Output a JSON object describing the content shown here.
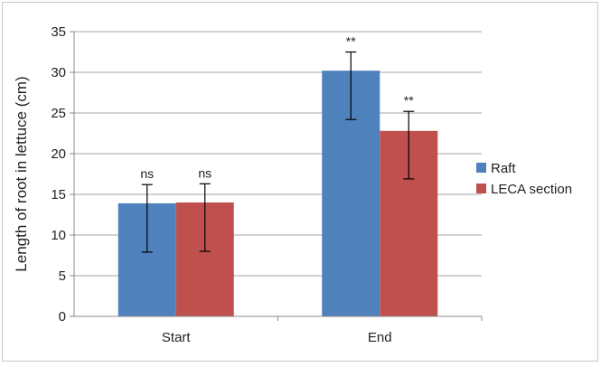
{
  "chart_data": {
    "type": "bar",
    "ylabel": "Length of root in lettuce  (cm)",
    "xlabel": "",
    "ylim": [
      0,
      35
    ],
    "ytick_step": 5,
    "grid": true,
    "legend_position": "right",
    "categories": [
      "Start",
      "End"
    ],
    "series": [
      {
        "name": "Raft",
        "color": "#4f81bd",
        "values": [
          13.9,
          30.2
        ],
        "err_low": [
          7.9,
          24.2
        ],
        "err_high": [
          16.2,
          32.5
        ],
        "annotations": [
          "ns",
          "**"
        ]
      },
      {
        "name": "LECA section",
        "color": "#c0504d",
        "values": [
          14.0,
          22.8
        ],
        "err_low": [
          8.0,
          16.9
        ],
        "err_high": [
          16.3,
          25.2
        ],
        "annotations": [
          "ns",
          "**"
        ]
      }
    ]
  }
}
